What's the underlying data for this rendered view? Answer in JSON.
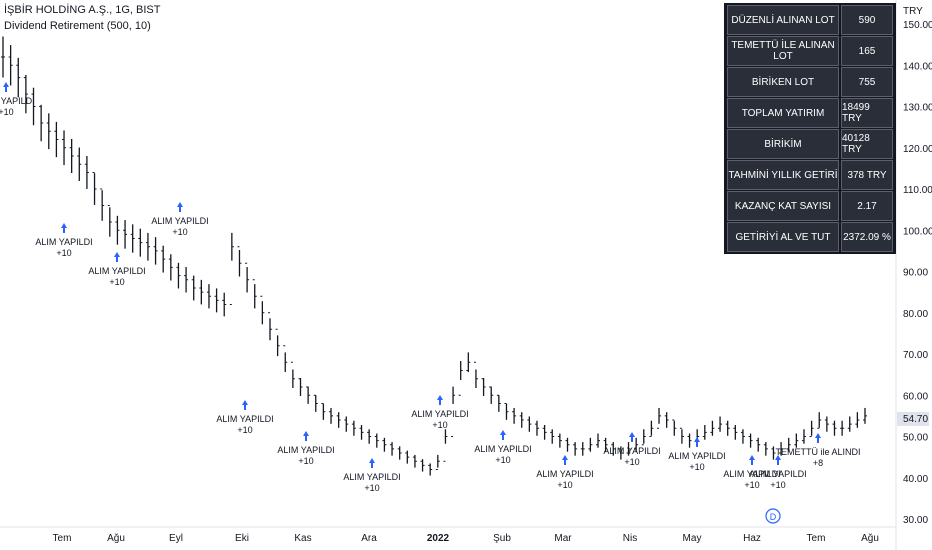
{
  "header": {
    "title": "İŞBİR HOLDİNG A.Ş., 1G, BIST",
    "indicator": "Dividend Retirement (500, 10)"
  },
  "price_axis": {
    "currency": "TRY",
    "ticks": [
      "150.00",
      "140.00",
      "130.00",
      "120.00",
      "110.00",
      "100.00",
      "90.00",
      "80.00",
      "70.00",
      "60.00",
      "50.00",
      "40.00",
      "30.00"
    ],
    "last_price": "54.70"
  },
  "time_axis": {
    "labels": [
      "Tem",
      "Ağu",
      "Eyl",
      "Eki",
      "Kas",
      "Ara",
      "2022",
      "Şub",
      "Mar",
      "Nis",
      "May",
      "Haz",
      "Tem",
      "Ağu"
    ]
  },
  "stats": [
    {
      "label": "DÜZENLİ ALINAN LOT",
      "value": "590"
    },
    {
      "label": "TEMETTÜ İLE ALINAN LOT",
      "value": "165"
    },
    {
      "label": "BİRİKEN LOT",
      "value": "755"
    },
    {
      "label": "TOPLAM YATIRIM",
      "value": "18499 TRY"
    },
    {
      "label": "BİRİKİM",
      "value": "40128 TRY"
    },
    {
      "label": "TAHMİNİ YILLIK GETİRİ",
      "value": "378 TRY"
    },
    {
      "label": "KAZANÇ KAT SAYISI",
      "value": "2.17"
    },
    {
      "label": "GETİRİYİ AL VE TUT",
      "value": "2372.09 %"
    }
  ],
  "dividend_marker": "D",
  "colors": {
    "arrow": "#2962ff",
    "bar": "#131722",
    "table_bg": "#2a2e39",
    "price_tag": "#e0e3eb"
  },
  "chart_data": {
    "type": "ohlc",
    "ylabel": "TRY",
    "ylim": [
      30,
      153
    ],
    "x_labels": [
      "Tem",
      "Ağu",
      "Eyl",
      "Eki",
      "Kas",
      "Ara",
      "2022",
      "Şub",
      "Mar",
      "Nis",
      "May",
      "Haz",
      "Tem",
      "Ağu"
    ],
    "series": [
      {
        "values": [
          142,
          140,
          137,
          133,
          130,
          126,
          124,
          122,
          120,
          118,
          116,
          114,
          110,
          106,
          102,
          100,
          99,
          98,
          97,
          96,
          95,
          93,
          91,
          89,
          88,
          86,
          85,
          84,
          83,
          82,
          96,
          92,
          88,
          84,
          80,
          76,
          72,
          68,
          64,
          62,
          60,
          58,
          56,
          55,
          54,
          53,
          52,
          51,
          50,
          49,
          48,
          47,
          46,
          45,
          44,
          43,
          42,
          44,
          50,
          60,
          66,
          68,
          64,
          62,
          60,
          58,
          56,
          55,
          54,
          53,
          52,
          51,
          50,
          49,
          48,
          47,
          47,
          48,
          49,
          48,
          47,
          46,
          47,
          48,
          50,
          52,
          55,
          54,
          52,
          50,
          49,
          50,
          51,
          52,
          53,
          52,
          51,
          50,
          49,
          48,
          47,
          46,
          47,
          48,
          49,
          50,
          52,
          54,
          53,
          52,
          52,
          53,
          54,
          55
        ]
      }
    ],
    "annotations": [
      {
        "label": "ALIM YAPILDI",
        "sub": "+10"
      },
      {
        "label": "ALIM YAPILDI",
        "sub": "+10"
      },
      {
        "label": "ALIM YAPILDI",
        "sub": "+10"
      },
      {
        "label": "ALIM YAPILDI",
        "sub": "+10"
      },
      {
        "label": "ALIM YAPILDI",
        "sub": "+10"
      },
      {
        "label": "ALIM YAPILDI",
        "sub": "+10"
      },
      {
        "label": "ALIM YAPILDI",
        "sub": "+10"
      },
      {
        "label": "ALIM YAPILDI",
        "sub": "+10"
      },
      {
        "label": "ALIM YAPILDI",
        "sub": "+10"
      },
      {
        "label": "ALIM YAPILDI",
        "sub": "+10"
      },
      {
        "label": "ALIM YAPILDI",
        "sub": "+10"
      },
      {
        "label": "ALIM YAPILDI",
        "sub": "+10"
      },
      {
        "label": "ALIM YAPILDI",
        "sub": "+10"
      },
      {
        "label": "TEMETTÜ ile ALINDI",
        "sub": "+8"
      },
      {
        "label": "ALIM YAPILDI",
        "sub": "+10"
      }
    ]
  }
}
